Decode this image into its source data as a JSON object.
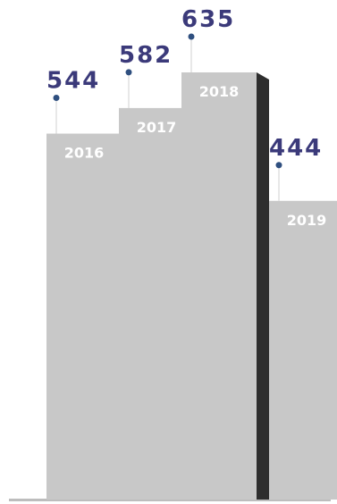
{
  "chart_data": {
    "type": "bar",
    "categories": [
      "2016",
      "2017",
      "2018",
      "2019"
    ],
    "values": [
      544,
      582,
      635,
      444
    ],
    "title": "",
    "xlabel": "",
    "ylabel": "",
    "grid": false,
    "legend": "none"
  },
  "colors": {
    "bar_front": "#c8c8c8",
    "bar_side": "#2e2e2e",
    "value_text": "#3b3a7a",
    "category_text": "#ffffff",
    "leader_line": "#d0d0d0",
    "marker_dot": "#2f4f7f",
    "baseline": "#bdbdbd"
  }
}
